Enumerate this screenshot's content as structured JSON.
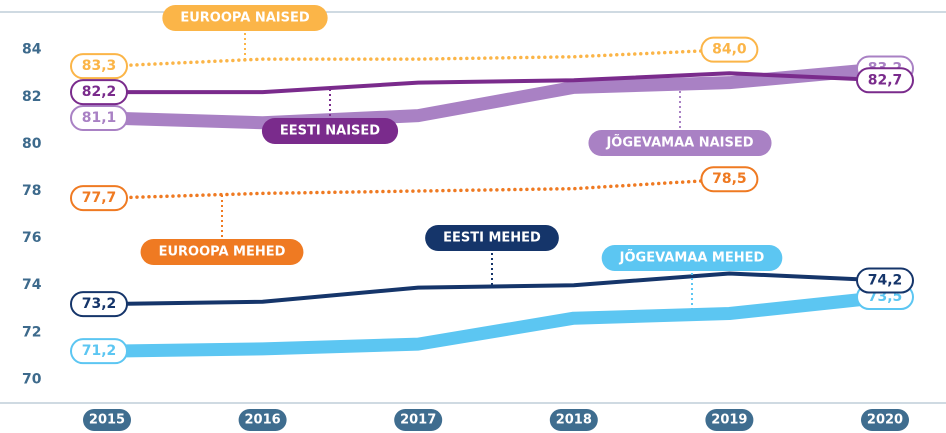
{
  "chart_data": {
    "type": "line",
    "categories": [
      "2015",
      "2016",
      "2017",
      "2018",
      "2019",
      "2020"
    ],
    "ylim": [
      69,
      85.6
    ],
    "yticks": [
      70,
      72,
      74,
      76,
      78,
      80,
      82,
      84
    ],
    "series": [
      {
        "name": "EUROOPA NAISED",
        "color": "#fbb548",
        "line_style": "dotted",
        "values": [
          83.3,
          83.6,
          83.6,
          83.7,
          84.0,
          null
        ],
        "value_labels": [
          "83,3",
          null,
          null,
          null,
          "84,0",
          null
        ]
      },
      {
        "name": "JÕGEVAMAA NAISED",
        "color": "#a981c4",
        "line_style": "thick",
        "values": [
          81.1,
          80.9,
          81.2,
          82.4,
          82.6,
          83.2
        ],
        "value_labels": [
          "81,1",
          null,
          null,
          null,
          null,
          "83,2"
        ]
      },
      {
        "name": "EESTI NAISED",
        "color": "#7a2b8c",
        "line_style": "solid",
        "values": [
          82.2,
          82.2,
          82.6,
          82.7,
          83.0,
          82.7
        ],
        "value_labels": [
          "82,2",
          null,
          null,
          null,
          null,
          "82,7"
        ]
      },
      {
        "name": "EUROOPA MEHED",
        "color": "#ef7a22",
        "line_style": "dotted",
        "values": [
          77.7,
          77.9,
          78.0,
          78.1,
          78.5,
          null
        ],
        "value_labels": [
          "77,7",
          null,
          null,
          null,
          "78,5",
          null
        ]
      },
      {
        "name": "JÕGEVAMAA MEHED",
        "color": "#5cc6f2",
        "line_style": "thick",
        "values": [
          71.2,
          71.3,
          71.5,
          72.6,
          72.8,
          73.5
        ],
        "value_labels": [
          "71,2",
          null,
          null,
          null,
          null,
          "73,5"
        ]
      },
      {
        "name": "EESTI MEHED",
        "color": "#15356a",
        "line_style": "solid",
        "values": [
          73.2,
          73.3,
          73.9,
          74.0,
          74.5,
          74.2
        ],
        "value_labels": [
          "73,2",
          null,
          null,
          null,
          null,
          "74,2"
        ]
      }
    ]
  }
}
